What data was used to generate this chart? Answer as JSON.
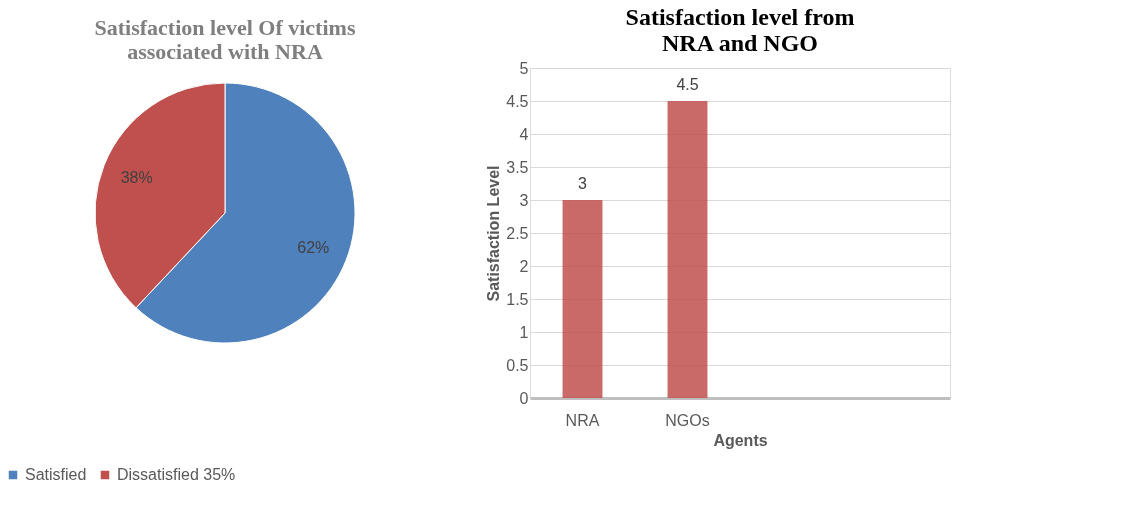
{
  "chart_data": [
    {
      "type": "pie",
      "title": "Satisfaction level Of victims associated with NRA",
      "categories": [
        "Satisfied",
        "Dissatisfied 35%"
      ],
      "values": [
        62,
        38
      ],
      "colors": [
        "#4f81bd",
        "#c0504d"
      ],
      "value_labels": [
        "62%",
        "38%"
      ],
      "legend": "bottom"
    },
    {
      "type": "bar",
      "title": "Satisfaction level  from NRA and NGO",
      "xlabel": "Agents",
      "ylabel": "Satisfaction Level",
      "categories": [
        "NRA",
        "NGOs",
        null,
        null
      ],
      "series": [
        {
          "color": "#c0504d",
          "values": [
            3,
            4.5,
            null,
            null
          ]
        }
      ],
      "ylim": [
        0,
        5
      ],
      "yticks": [
        0,
        0.5,
        1,
        1.5,
        2,
        2.5,
        3,
        3.5,
        4,
        4.5,
        5
      ],
      "grid": "y",
      "data_labels": true
    }
  ]
}
